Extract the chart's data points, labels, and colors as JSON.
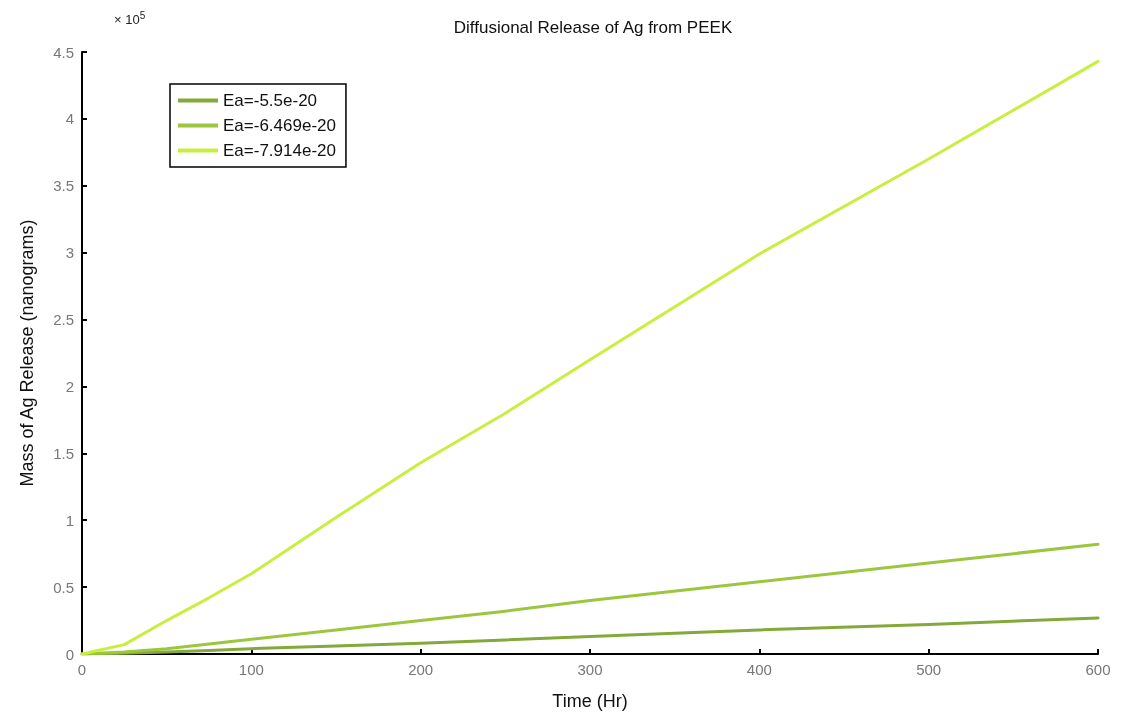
{
  "chart_data": {
    "type": "line",
    "title": "Diffusional Release of Ag from PEEK",
    "xlabel": "Time (Hr)",
    "ylabel": "Mass of Ag Release (nanograms)",
    "annotations": [
      "× 10$^{5}$"
    ],
    "x": [
      0,
      25,
      50,
      75,
      100,
      150,
      200,
      250,
      300,
      400,
      500,
      600
    ],
    "series": [
      {
        "name": "Ea=-5.5e-20",
        "color": "#82a93a",
        "values": [
          0,
          0.005,
          0.015,
          0.027,
          0.04,
          0.06,
          0.08,
          0.105,
          0.13,
          0.18,
          0.22,
          0.27
        ]
      },
      {
        "name": "Ea=-6.469e-20",
        "color": "#9cc63e",
        "values": [
          0,
          0.015,
          0.04,
          0.075,
          0.11,
          0.18,
          0.25,
          0.32,
          0.4,
          0.54,
          0.68,
          0.82
        ]
      },
      {
        "name": "Ea=-7.914e-20",
        "color": "#c8ef3f",
        "values": [
          0,
          0.07,
          0.25,
          0.42,
          0.6,
          1.02,
          1.43,
          1.8,
          2.2,
          2.99,
          3.7,
          4.43
        ]
      }
    ],
    "xlim": [
      0,
      600
    ],
    "xticks": [
      0,
      100,
      200,
      300,
      400,
      500,
      600
    ],
    "ylim": [
      0,
      4.5
    ],
    "yticks": [
      0,
      0.5,
      1,
      1.5,
      2,
      2.5,
      3,
      3.5,
      4,
      4.5
    ],
    "grid": false,
    "legend": "top left",
    "marker": "none",
    "line_style": "solid"
  }
}
